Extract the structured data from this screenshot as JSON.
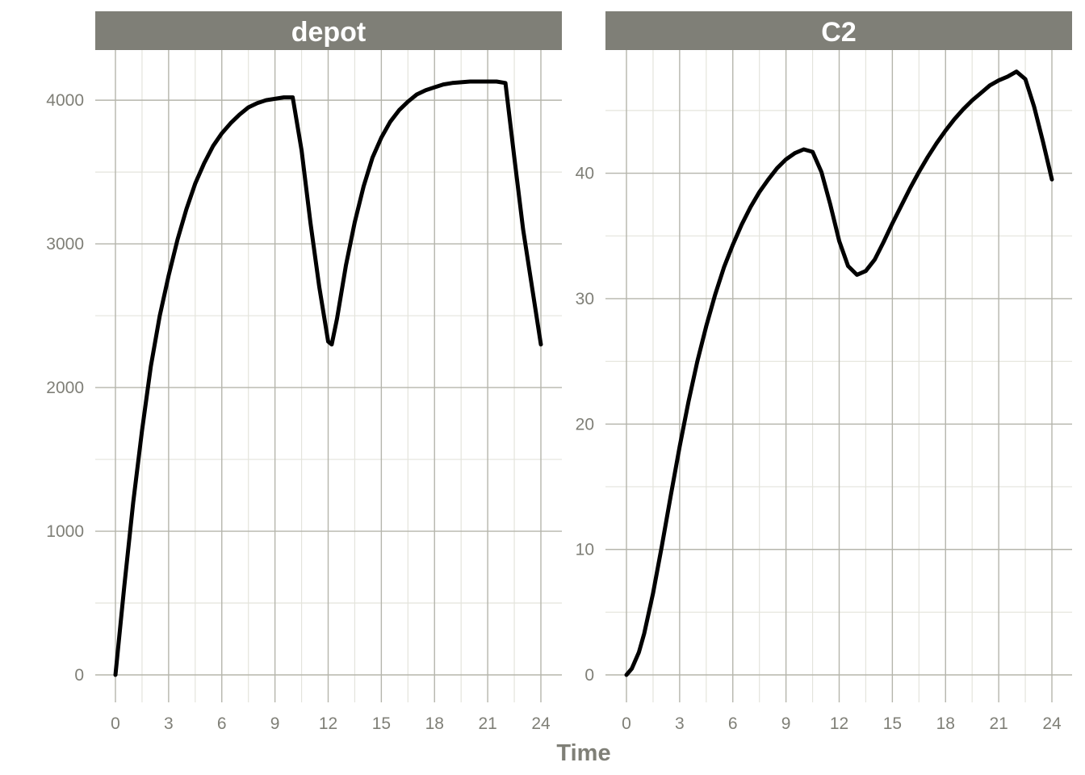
{
  "chart_data": {
    "type": "line",
    "xlabel": "Time",
    "ylabel": "",
    "grid": true,
    "panels": [
      {
        "title": "depot",
        "xlim": [
          0,
          24
        ],
        "ylim": [
          0,
          4130
        ],
        "x_ticks": [
          0,
          3,
          6,
          9,
          12,
          15,
          18,
          21,
          24
        ],
        "y_ticks": [
          0,
          1000,
          2000,
          3000,
          4000
        ],
        "series": [
          {
            "color": "#000000",
            "points": [
              [
                0,
                0
              ],
              [
                0.5,
                620
              ],
              [
                1,
                1200
              ],
              [
                1.5,
                1700
              ],
              [
                2,
                2150
              ],
              [
                2.5,
                2500
              ],
              [
                3,
                2780
              ],
              [
                3.5,
                3030
              ],
              [
                4,
                3240
              ],
              [
                4.5,
                3420
              ],
              [
                5,
                3560
              ],
              [
                5.5,
                3680
              ],
              [
                6,
                3770
              ],
              [
                6.5,
                3840
              ],
              [
                7,
                3900
              ],
              [
                7.5,
                3950
              ],
              [
                8,
                3980
              ],
              [
                8.5,
                4000
              ],
              [
                9,
                4010
              ],
              [
                9.5,
                4020
              ],
              [
                10,
                4020
              ],
              [
                10.5,
                3650
              ],
              [
                11,
                3150
              ],
              [
                11.5,
                2700
              ],
              [
                12,
                2320
              ],
              [
                12.2,
                2300
              ],
              [
                12.5,
                2480
              ],
              [
                13,
                2850
              ],
              [
                13.5,
                3150
              ],
              [
                14,
                3400
              ],
              [
                14.5,
                3600
              ],
              [
                15,
                3740
              ],
              [
                15.5,
                3850
              ],
              [
                16,
                3930
              ],
              [
                16.5,
                3990
              ],
              [
                17,
                4040
              ],
              [
                17.5,
                4070
              ],
              [
                18,
                4090
              ],
              [
                18.5,
                4110
              ],
              [
                19,
                4120
              ],
              [
                19.5,
                4125
              ],
              [
                20,
                4130
              ],
              [
                20.5,
                4130
              ],
              [
                21,
                4130
              ],
              [
                21.5,
                4130
              ],
              [
                22,
                4120
              ],
              [
                22.5,
                3600
              ],
              [
                23,
                3100
              ],
              [
                23.5,
                2700
              ],
              [
                24,
                2300
              ]
            ]
          }
        ]
      },
      {
        "title": "C2",
        "xlim": [
          0,
          24
        ],
        "ylim": [
          0,
          47.5
        ],
        "x_ticks": [
          0,
          3,
          6,
          9,
          12,
          15,
          18,
          21,
          24
        ],
        "y_ticks": [
          0,
          10,
          20,
          30,
          40
        ],
        "series": [
          {
            "color": "#000000",
            "points": [
              [
                0,
                0
              ],
              [
                0.3,
                0.5
              ],
              [
                0.7,
                1.8
              ],
              [
                1,
                3.3
              ],
              [
                1.5,
                6.5
              ],
              [
                2,
                10.3
              ],
              [
                2.5,
                14.3
              ],
              [
                3,
                18.2
              ],
              [
                3.5,
                21.8
              ],
              [
                4,
                25.0
              ],
              [
                4.5,
                27.8
              ],
              [
                5,
                30.3
              ],
              [
                5.5,
                32.5
              ],
              [
                6,
                34.3
              ],
              [
                6.5,
                35.9
              ],
              [
                7,
                37.3
              ],
              [
                7.5,
                38.5
              ],
              [
                8,
                39.5
              ],
              [
                8.5,
                40.4
              ],
              [
                9,
                41.1
              ],
              [
                9.5,
                41.6
              ],
              [
                10,
                41.9
              ],
              [
                10.5,
                41.7
              ],
              [
                11,
                40.1
              ],
              [
                11.5,
                37.5
              ],
              [
                12,
                34.6
              ],
              [
                12.5,
                32.6
              ],
              [
                13,
                31.9
              ],
              [
                13.5,
                32.2
              ],
              [
                14,
                33.1
              ],
              [
                14.5,
                34.5
              ],
              [
                15,
                36.0
              ],
              [
                15.5,
                37.4
              ],
              [
                16,
                38.8
              ],
              [
                16.5,
                40.1
              ],
              [
                17,
                41.3
              ],
              [
                17.5,
                42.4
              ],
              [
                18,
                43.4
              ],
              [
                18.5,
                44.3
              ],
              [
                19,
                45.1
              ],
              [
                19.5,
                45.8
              ],
              [
                20,
                46.4
              ],
              [
                20.5,
                47.0
              ],
              [
                21,
                47.4
              ],
              [
                21.5,
                47.7
              ],
              [
                22,
                48.1
              ],
              [
                22.5,
                47.5
              ],
              [
                23,
                45.3
              ],
              [
                23.5,
                42.5
              ],
              [
                24,
                39.5
              ]
            ]
          }
        ]
      }
    ],
    "strip_fill": "#7f7f77",
    "gridline_major": "#b5b5ac",
    "gridline_minor": "#e4e4dc",
    "tick_label_color": "#7f7f77"
  }
}
